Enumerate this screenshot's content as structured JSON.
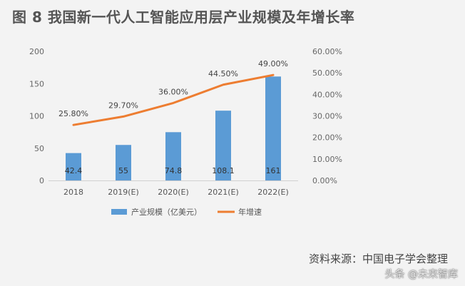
{
  "title": "图 8  我国新一代人工智能应用层产业规模及年增长率",
  "source": "资料来源：中国电子学会整理",
  "watermark": "头条 @未来智库",
  "colors": {
    "bar": "#5b9bd5",
    "line": "#ed7d31",
    "background": "#f3f3f3"
  },
  "chart_data": {
    "type": "bar",
    "categories": [
      "2018",
      "2019(E)",
      "2020(E)",
      "2021(E)",
      "2022(E)"
    ],
    "series": [
      {
        "name": "产业规模（亿美元）",
        "type": "bar",
        "axis": "left",
        "values": [
          42.4,
          55,
          74.8,
          108.1,
          161
        ],
        "labels": [
          "42.4",
          "55",
          "74.8",
          "108.1",
          "161"
        ]
      },
      {
        "name": "年增速",
        "type": "line",
        "axis": "right",
        "values": [
          25.8,
          29.7,
          36.0,
          44.5,
          49.0
        ],
        "labels": [
          "25.80%",
          "29.70%",
          "36.00%",
          "44.50%",
          "49.00%"
        ]
      }
    ],
    "y_left": {
      "ylim": [
        0,
        200
      ],
      "ticks": [
        "0",
        "50",
        "100",
        "150",
        "200"
      ]
    },
    "y_right": {
      "ylim": [
        0,
        60
      ],
      "ticks": [
        "0.00%",
        "10.00%",
        "20.00%",
        "30.00%",
        "40.00%",
        "50.00%",
        "60.00%"
      ]
    },
    "legend_position": "bottom",
    "grid": false
  }
}
